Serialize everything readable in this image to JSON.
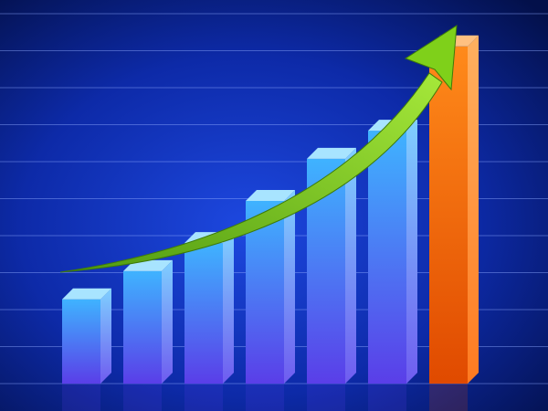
{
  "chart_data": {
    "type": "bar",
    "categories": [
      "",
      "",
      "",
      "",
      "",
      "",
      ""
    ],
    "values": [
      3,
      4,
      5,
      6.5,
      8,
      9,
      12
    ],
    "ylim": [
      0,
      13
    ],
    "grid": true,
    "legend": "none",
    "bar_style": "3d",
    "trend_arrow": "upward",
    "colors": {
      "background_dark": "#03104a",
      "background_light": "#1d48e0",
      "grid": "#8fa8ff",
      "bar_top": "#3fb3ff",
      "bar_bottom": "#5a3ee8",
      "highlight_top": "#ff8a1a",
      "highlight_bottom": "#e04a00",
      "arrow": "#7fd01a"
    }
  }
}
